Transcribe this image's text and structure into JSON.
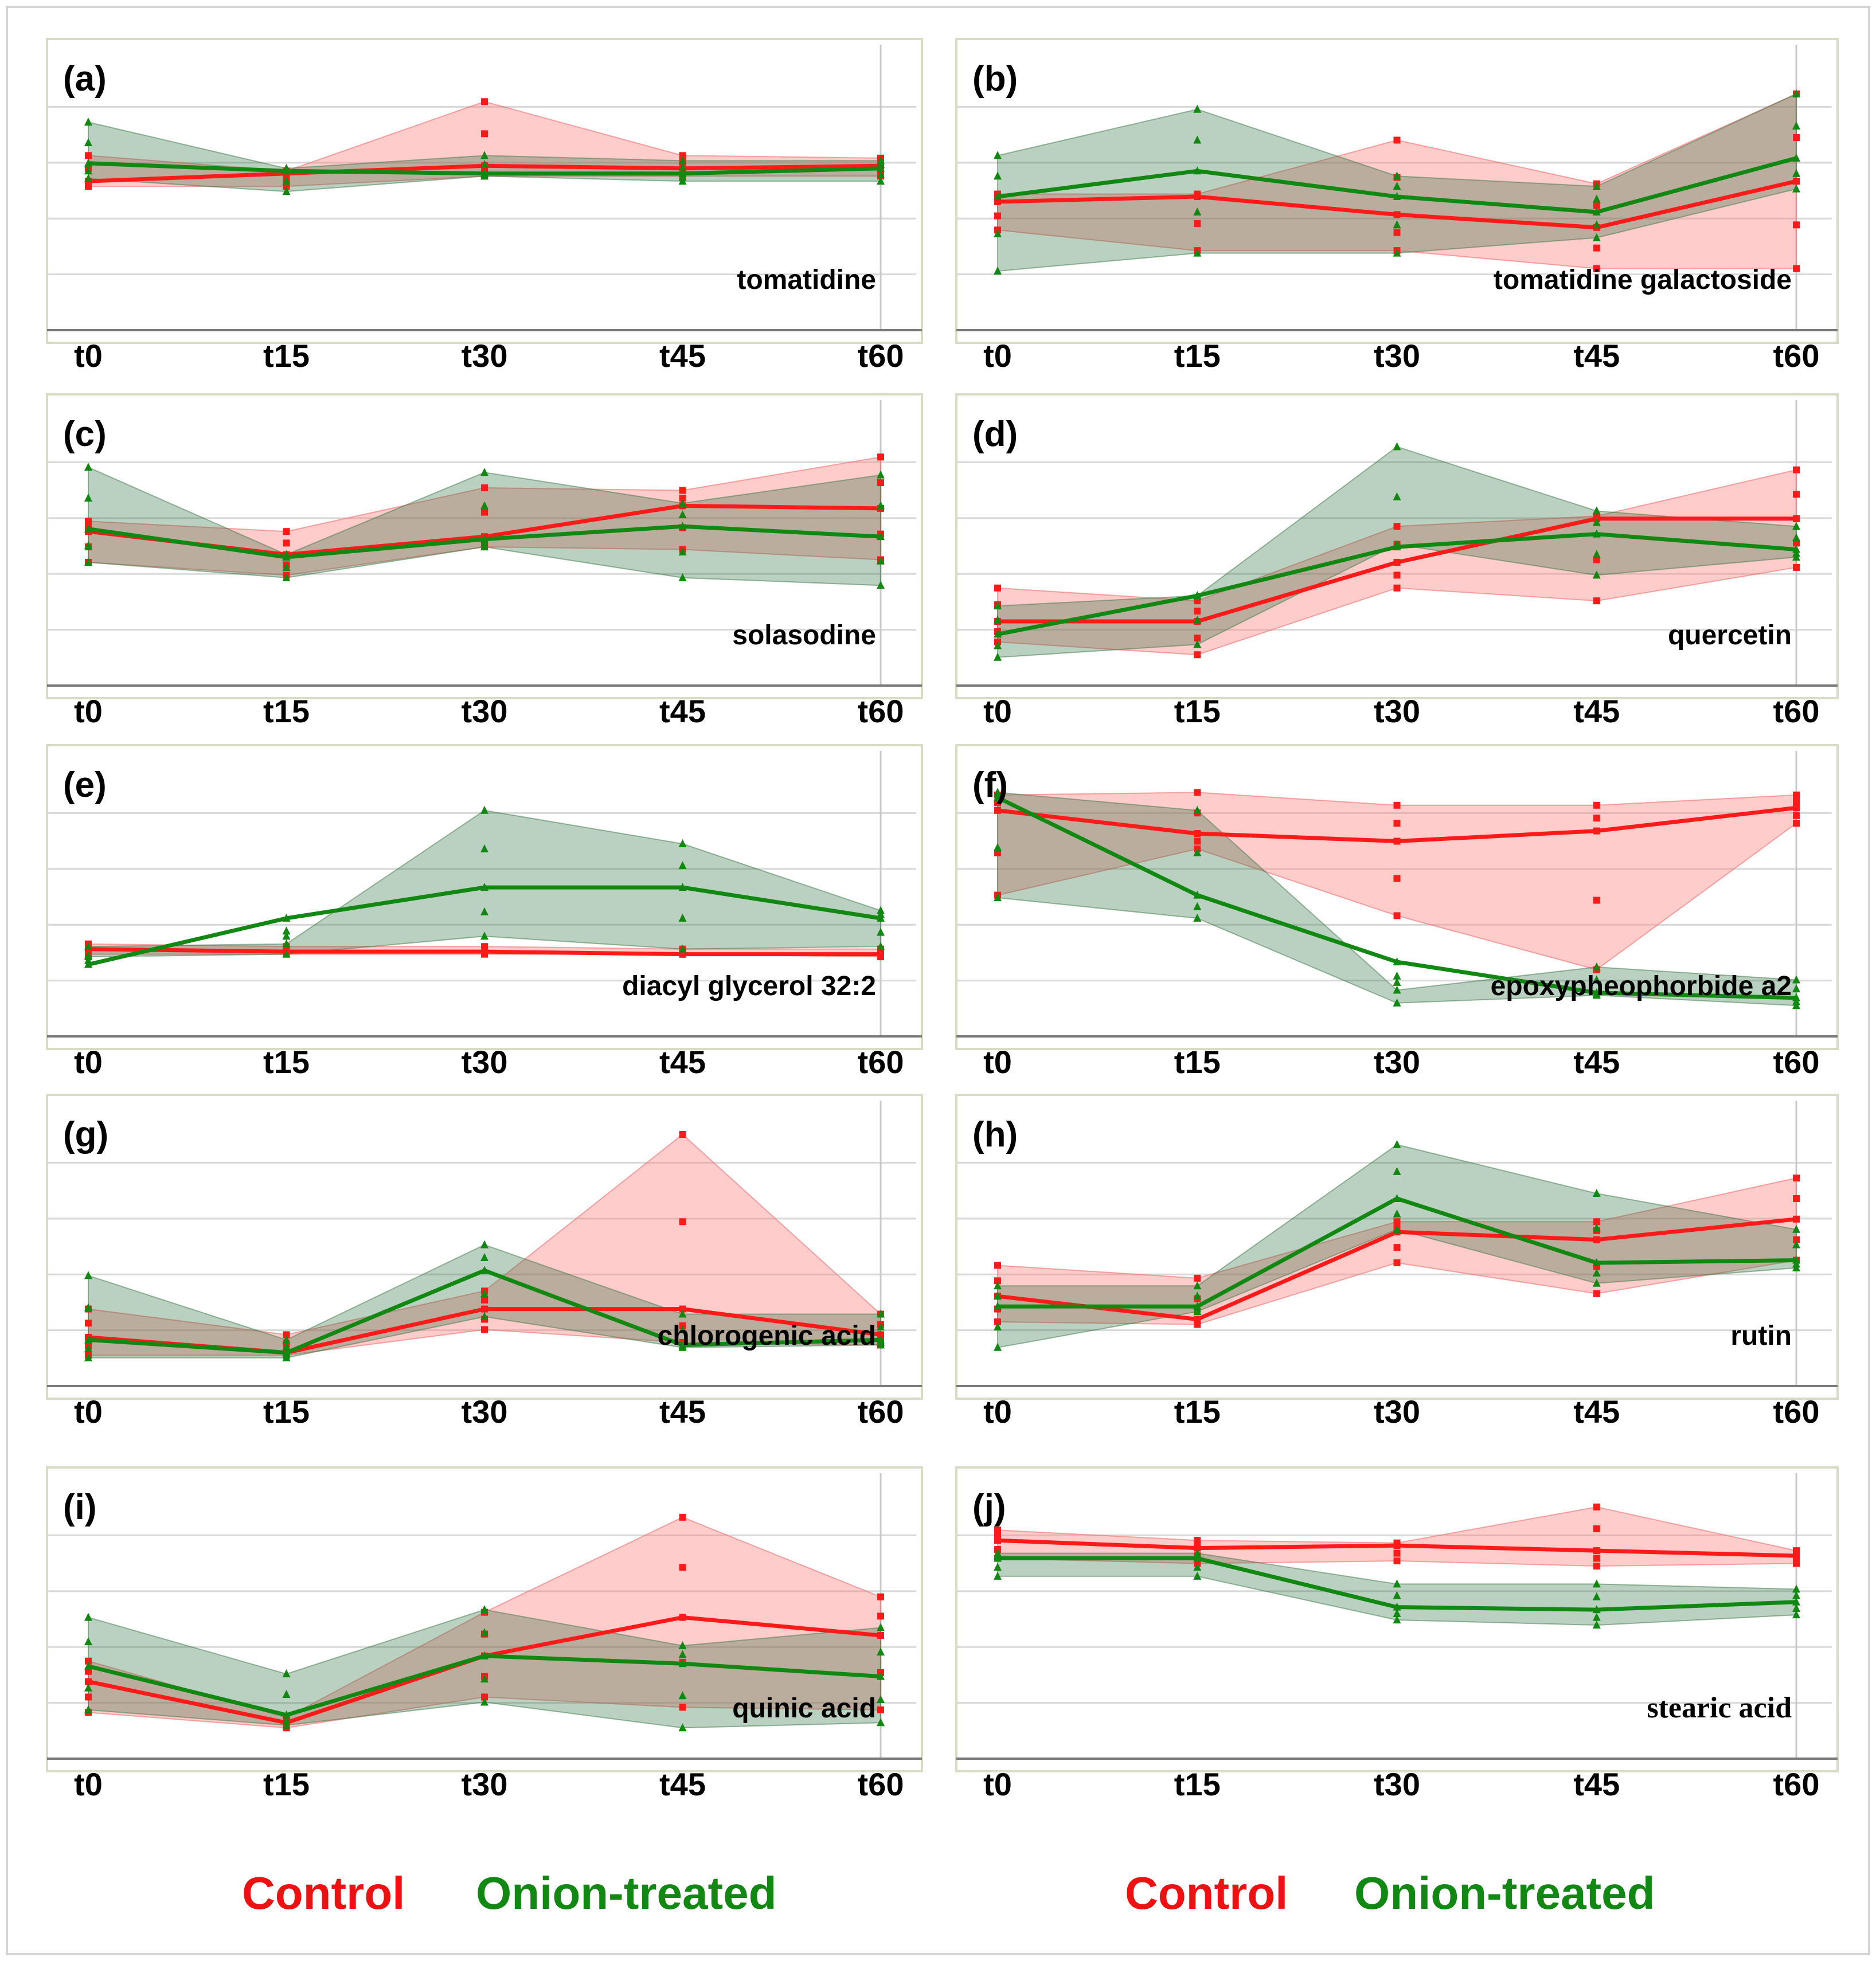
{
  "chart_data": [
    {
      "panel": "(a)",
      "type": "line",
      "title": "tomatidine",
      "categories": [
        "t0",
        "t15",
        "t30",
        "t45",
        "t60"
      ],
      "ylim": [
        0,
        10
      ],
      "series": [
        {
          "name": "Control",
          "values": [
            5.8,
            6.1,
            6.4,
            6.3,
            6.4
          ],
          "lower": [
            5.6,
            5.6,
            6.0,
            6.0,
            6.0
          ],
          "upper": [
            6.8,
            6.2,
            8.9,
            6.8,
            6.7
          ]
        },
        {
          "name": "Onion-treated",
          "values": [
            6.5,
            6.2,
            6.1,
            6.1,
            6.3
          ],
          "lower": [
            5.9,
            5.4,
            6.0,
            5.8,
            5.8
          ],
          "upper": [
            8.1,
            6.3,
            6.8,
            6.6,
            6.6
          ]
        }
      ]
    },
    {
      "panel": "(b)",
      "type": "line",
      "title": "tomatidine galactoside",
      "categories": [
        "t0",
        "t15",
        "t30",
        "t45",
        "t60"
      ],
      "ylim": [
        0,
        10
      ],
      "series": [
        {
          "name": "Control",
          "values": [
            5.0,
            5.2,
            4.5,
            4.0,
            5.8
          ],
          "lower": [
            3.9,
            3.1,
            3.1,
            2.4,
            2.4
          ],
          "upper": [
            5.3,
            5.3,
            7.4,
            5.7,
            9.2
          ]
        },
        {
          "name": "Onion-treated",
          "values": [
            5.2,
            6.2,
            5.2,
            4.6,
            6.7
          ],
          "lower": [
            2.3,
            3.0,
            3.0,
            3.6,
            5.5
          ],
          "upper": [
            6.8,
            8.6,
            6.0,
            5.6,
            9.2
          ]
        }
      ]
    },
    {
      "panel": "(c)",
      "type": "line",
      "title": "solasodine",
      "categories": [
        "t0",
        "t15",
        "t30",
        "t45",
        "t60"
      ],
      "ylim": [
        0,
        10
      ],
      "series": [
        {
          "name": "Control",
          "values": [
            6.0,
            5.1,
            5.8,
            7.0,
            6.9
          ],
          "lower": [
            4.8,
            4.3,
            5.4,
            5.3,
            4.9
          ],
          "upper": [
            6.4,
            6.0,
            7.7,
            7.6,
            8.9
          ]
        },
        {
          "name": "Onion-treated",
          "values": [
            6.1,
            5.0,
            5.7,
            6.2,
            5.8
          ],
          "lower": [
            4.8,
            4.2,
            5.4,
            4.2,
            3.9
          ],
          "upper": [
            8.5,
            5.1,
            8.3,
            7.1,
            8.2
          ]
        }
      ]
    },
    {
      "panel": "(d)",
      "type": "line",
      "title": "quercetin",
      "categories": [
        "t0",
        "t15",
        "t30",
        "t45",
        "t60"
      ],
      "ylim": [
        0,
        10
      ],
      "series": [
        {
          "name": "Control",
          "values": [
            2.5,
            2.5,
            4.8,
            6.5,
            6.5
          ],
          "lower": [
            1.7,
            1.2,
            3.8,
            3.3,
            4.6
          ],
          "upper": [
            3.8,
            3.3,
            6.2,
            6.6,
            8.4
          ]
        },
        {
          "name": "Onion-treated",
          "values": [
            2.0,
            3.5,
            5.4,
            5.9,
            5.3
          ],
          "lower": [
            1.1,
            1.6,
            5.5,
            4.3,
            5.0
          ],
          "upper": [
            3.1,
            3.5,
            9.3,
            6.8,
            6.2
          ]
        }
      ]
    },
    {
      "panel": "(e)",
      "type": "line",
      "title": "diacyl glycerol 32:2",
      "categories": [
        "t0",
        "t15",
        "t30",
        "t45",
        "t60"
      ],
      "ylim": [
        0,
        10
      ],
      "series": [
        {
          "name": "Control",
          "values": [
            3.4,
            3.3,
            3.3,
            3.2,
            3.2
          ],
          "lower": [
            3.2,
            3.2,
            3.2,
            3.2,
            3.1
          ],
          "upper": [
            3.6,
            3.5,
            3.5,
            3.4,
            3.4
          ]
        },
        {
          "name": "Onion-treated",
          "values": [
            2.8,
            4.6,
            5.8,
            5.8,
            4.6
          ],
          "lower": [
            3.1,
            3.2,
            3.9,
            3.4,
            3.5
          ],
          "upper": [
            3.5,
            3.6,
            8.8,
            7.5,
            4.9
          ]
        }
      ]
    },
    {
      "panel": "(f)",
      "type": "line",
      "title": "epoxypheophorbide a2",
      "categories": [
        "t0",
        "t15",
        "t30",
        "t45",
        "t60"
      ],
      "ylim": [
        0,
        10
      ],
      "series": [
        {
          "name": "Control",
          "values": [
            8.8,
            7.9,
            7.6,
            8.0,
            8.9
          ],
          "lower": [
            5.5,
            7.3,
            4.7,
            2.6,
            8.3
          ],
          "upper": [
            9.4,
            9.5,
            9.0,
            9.0,
            9.4
          ]
        },
        {
          "name": "Onion-treated",
          "values": [
            9.3,
            5.5,
            2.9,
            1.7,
            1.5
          ],
          "lower": [
            5.4,
            4.6,
            1.3,
            1.6,
            1.2
          ],
          "upper": [
            9.5,
            8.8,
            1.8,
            2.7,
            2.2
          ]
        }
      ]
    },
    {
      "panel": "(g)",
      "type": "line",
      "title": "chlorogenic acid",
      "categories": [
        "t0",
        "t15",
        "t30",
        "t45",
        "t60"
      ],
      "ylim": [
        0,
        10
      ],
      "series": [
        {
          "name": "Control",
          "values": [
            1.9,
            1.3,
            3.0,
            3.0,
            2.0
          ],
          "lower": [
            1.2,
            1.2,
            2.2,
            1.7,
            1.6
          ],
          "upper": [
            3.0,
            2.0,
            3.7,
            9.8,
            2.8
          ]
        },
        {
          "name": "Onion-treated",
          "values": [
            1.8,
            1.3,
            4.5,
            1.6,
            1.8
          ],
          "lower": [
            1.1,
            1.1,
            2.7,
            1.5,
            1.6
          ],
          "upper": [
            4.3,
            1.8,
            5.5,
            2.8,
            2.8
          ]
        }
      ]
    },
    {
      "panel": "(h)",
      "type": "line",
      "title": "rutin",
      "categories": [
        "t0",
        "t15",
        "t30",
        "t45",
        "t60"
      ],
      "ylim": [
        0,
        10
      ],
      "series": [
        {
          "name": "Control",
          "values": [
            3.5,
            2.6,
            6.0,
            5.7,
            6.5
          ],
          "lower": [
            2.5,
            2.4,
            4.8,
            3.6,
            4.9
          ],
          "upper": [
            4.7,
            4.2,
            6.4,
            6.4,
            8.1
          ]
        },
        {
          "name": "Onion-treated",
          "values": [
            3.1,
            3.1,
            7.3,
            4.8,
            4.9
          ],
          "lower": [
            1.5,
            2.9,
            6.1,
            4.0,
            4.6
          ],
          "upper": [
            3.9,
            3.9,
            9.4,
            7.5,
            6.1
          ]
        }
      ]
    },
    {
      "panel": "(i)",
      "type": "line",
      "title": "quinic acid",
      "categories": [
        "t0",
        "t15",
        "t30",
        "t45",
        "t60"
      ],
      "ylim": [
        0,
        10
      ],
      "series": [
        {
          "name": "Control",
          "values": [
            3.0,
            1.4,
            4.0,
            5.5,
            4.8
          ],
          "lower": [
            1.8,
            1.2,
            2.4,
            2.0,
            1.9
          ],
          "upper": [
            3.8,
            1.6,
            5.7,
            9.4,
            6.3
          ]
        },
        {
          "name": "Onion-treated",
          "values": [
            3.6,
            1.7,
            4.0,
            3.7,
            3.2
          ],
          "lower": [
            1.9,
            1.3,
            2.2,
            1.2,
            1.4
          ],
          "upper": [
            5.5,
            3.3,
            5.8,
            4.4,
            5.1
          ]
        }
      ]
    },
    {
      "panel": "(j)",
      "type": "line",
      "title": "stearic acid",
      "categories": [
        "t0",
        "t15",
        "t30",
        "t45",
        "t60"
      ],
      "ylim": [
        0,
        10
      ],
      "series": [
        {
          "name": "Control",
          "values": [
            8.5,
            8.2,
            8.3,
            8.1,
            7.9
          ],
          "lower": [
            7.8,
            7.6,
            7.7,
            7.5,
            7.6
          ],
          "upper": [
            8.9,
            8.5,
            8.4,
            9.8,
            8.1
          ]
        },
        {
          "name": "Onion-treated",
          "values": [
            7.8,
            7.8,
            5.9,
            5.8,
            6.1
          ],
          "lower": [
            7.1,
            7.1,
            5.4,
            5.2,
            5.6
          ],
          "upper": [
            8.0,
            8.0,
            6.8,
            6.8,
            6.6
          ]
        }
      ]
    }
  ],
  "legend": {
    "left": {
      "control": "Control",
      "onion": "Onion-treated"
    },
    "right": {
      "control": "Control",
      "onion": "Onion-treated"
    }
  },
  "colors": {
    "control": "#ff1a1a",
    "onion": "#118811"
  }
}
